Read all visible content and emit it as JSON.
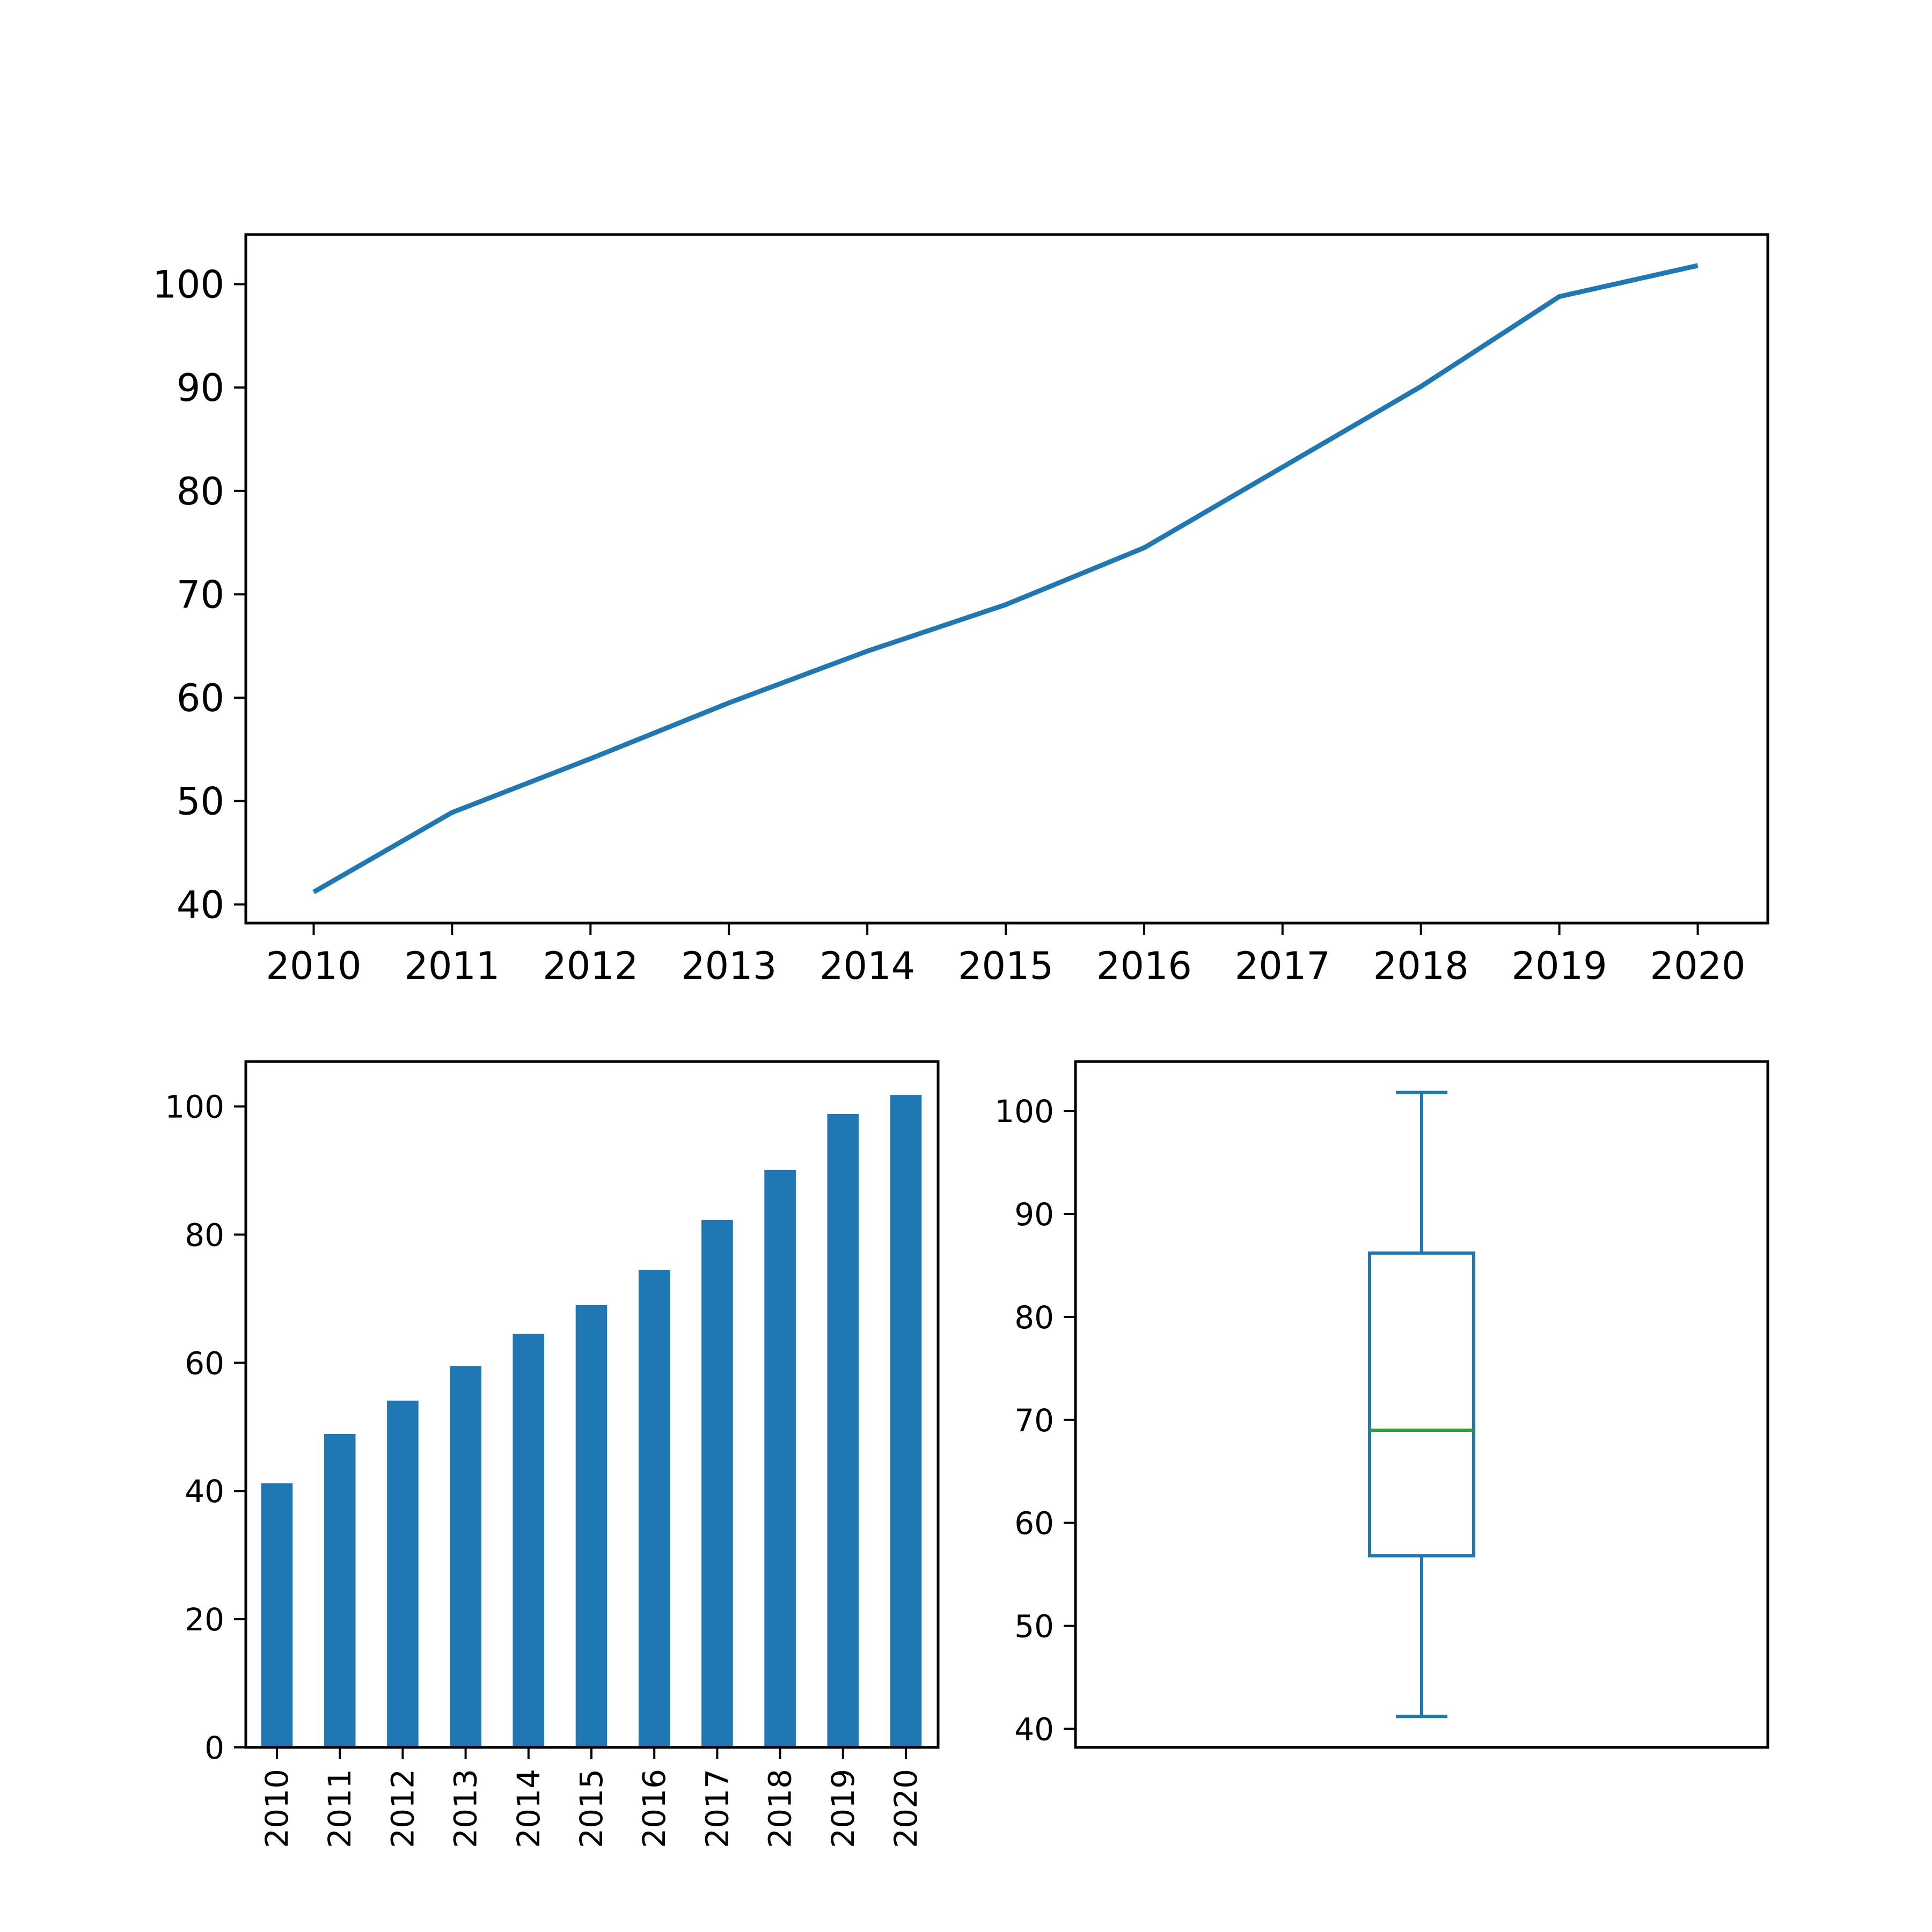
{
  "chart_data": [
    {
      "type": "line",
      "categories": [
        "2010",
        "2011",
        "2012",
        "2013",
        "2014",
        "2015",
        "2016",
        "2017",
        "2018",
        "2019",
        "2020"
      ],
      "values": [
        41.2,
        48.9,
        54.1,
        59.5,
        64.5,
        69.0,
        74.5,
        82.3,
        90.1,
        98.8,
        101.8
      ],
      "y_ticks": [
        40,
        50,
        60,
        70,
        80,
        90,
        100
      ],
      "ylim": [
        38.2,
        104.8
      ],
      "title": "",
      "xlabel": "",
      "ylabel": "",
      "grid": false,
      "color": "#1f77b4"
    },
    {
      "type": "bar",
      "categories": [
        "2010",
        "2011",
        "2012",
        "2013",
        "2014",
        "2015",
        "2016",
        "2017",
        "2018",
        "2019",
        "2020"
      ],
      "values": [
        41.2,
        48.9,
        54.1,
        59.5,
        64.5,
        69.0,
        74.5,
        82.3,
        90.1,
        98.8,
        101.8
      ],
      "y_ticks": [
        0,
        20,
        40,
        60,
        80,
        100
      ],
      "ylim": [
        0,
        107
      ],
      "x_tick_rotation": "vertical",
      "title": "",
      "xlabel": "",
      "ylabel": "",
      "grid": false,
      "color": "#1f77b4"
    },
    {
      "type": "box",
      "stats": {
        "min": 41.2,
        "q1": 56.8,
        "median": 69.0,
        "q3": 86.2,
        "max": 101.8
      },
      "y_ticks": [
        40,
        50,
        60,
        70,
        80,
        90,
        100
      ],
      "ylim": [
        38.2,
        104.8
      ],
      "title": "",
      "xlabel": "",
      "ylabel": "",
      "grid": false,
      "box_color": "#1f77b4",
      "median_color": "#2ca02c"
    }
  ]
}
